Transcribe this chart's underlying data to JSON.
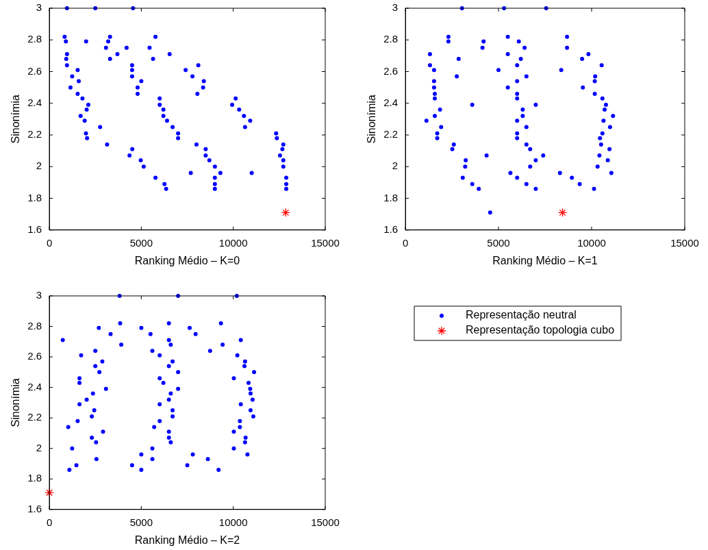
{
  "chart_data": [
    {
      "type": "scatter",
      "xlabel": "Ranking Médio – K=0",
      "ylabel": "Sinonímia",
      "xlim": [
        0,
        15000
      ],
      "xticks": [
        0,
        5000,
        10000,
        15000
      ],
      "ylim": [
        1.6,
        3
      ],
      "yticks": [
        1.6,
        1.8,
        2,
        2.2,
        2.4,
        2.6,
        2.8,
        3
      ],
      "grid": false,
      "series": [
        {
          "color": "#0000ff",
          "marker": "circle",
          "x": [
            960,
            2500,
            4550,
            830,
            3300,
            5770,
            900,
            2000,
            3200,
            3080,
            4200,
            5450,
            960,
            3700,
            6540,
            920,
            3300,
            5640,
            960,
            4500,
            8100,
            1540,
            4500,
            7410,
            1240,
            4500,
            7780,
            1600,
            5000,
            8400,
            1150,
            4800,
            8360,
            1540,
            4800,
            8050,
            1800,
            6000,
            10130,
            2120,
            6000,
            9940,
            2030,
            6200,
            10320,
            1700,
            6200,
            10580,
            1920,
            6400,
            10920,
            2760,
            6700,
            10640,
            1990,
            7000,
            12330,
            2050,
            7000,
            12370,
            3140,
            8000,
            12720,
            4510,
            8500,
            12670,
            4360,
            8500,
            12540,
            4970,
            8700,
            12720,
            5130,
            9000,
            12720,
            7690,
            9300,
            11000,
            5770,
            9000,
            12880,
            6260,
            9000,
            12880,
            6350,
            9000,
            12880
          ],
          "values": [
            3,
            3,
            3,
            2.82,
            2.82,
            2.82,
            2.79,
            2.79,
            2.79,
            2.75,
            2.75,
            2.75,
            2.71,
            2.71,
            2.71,
            2.68,
            2.68,
            2.68,
            2.64,
            2.64,
            2.64,
            2.61,
            2.61,
            2.61,
            2.57,
            2.57,
            2.57,
            2.54,
            2.54,
            2.54,
            2.5,
            2.5,
            2.5,
            2.46,
            2.46,
            2.46,
            2.43,
            2.43,
            2.43,
            2.39,
            2.39,
            2.39,
            2.36,
            2.36,
            2.36,
            2.32,
            2.32,
            2.32,
            2.29,
            2.29,
            2.29,
            2.25,
            2.25,
            2.25,
            2.21,
            2.21,
            2.21,
            2.18,
            2.18,
            2.18,
            2.14,
            2.14,
            2.14,
            2.11,
            2.11,
            2.11,
            2.07,
            2.07,
            2.07,
            2.04,
            2.04,
            2.04,
            2,
            2,
            2,
            1.96,
            1.96,
            1.96,
            1.93,
            1.93,
            1.93,
            1.89,
            1.89,
            1.89,
            1.86,
            1.86,
            1.86
          ]
        },
        {
          "color": "#ff0000",
          "marker": "cross",
          "x": [
            12850
          ],
          "values": [
            1.71
          ]
        }
      ]
    },
    {
      "type": "scatter",
      "xlabel": "Ranking Médio – K=1",
      "ylabel": "Sinonímia",
      "xlim": [
        0,
        15000
      ],
      "xticks": [
        0,
        5000,
        10000,
        15000
      ],
      "ylim": [
        1.6,
        3
      ],
      "yticks": [
        1.6,
        1.8,
        2,
        2.2,
        2.4,
        2.6,
        2.8,
        3
      ],
      "grid": false,
      "series": [
        {
          "color": "#0000ff",
          "marker": "circle",
          "x": [
            3040,
            5300,
            7560,
            2310,
            5500,
            8680,
            2310,
            4200,
            6090,
            4140,
            6400,
            8680,
            1320,
            5500,
            9830,
            2860,
            6200,
            9490,
            1320,
            6000,
            10540,
            1540,
            5000,
            8370,
            2760,
            6500,
            10190,
            1540,
            6000,
            10170,
            1540,
            5500,
            9530,
            1580,
            6000,
            10170,
            1580,
            6000,
            10580,
            3590,
            7000,
            10770,
            1860,
            6300,
            10700,
            1580,
            6300,
            11150,
            1130,
            6000,
            10640,
            1920,
            6500,
            10990,
            1710,
            6000,
            10580,
            1710,
            6000,
            10450,
            2600,
            6500,
            10510,
            2520,
            6700,
            10960,
            4360,
            7400,
            10420,
            3240,
            7000,
            10870,
            3210,
            6700,
            10320,
            5640,
            8300,
            11060,
            3080,
            6000,
            8940,
            3590,
            6500,
            9360,
            3940,
            7000,
            10130,
            4550
          ],
          "values": [
            3,
            3,
            3,
            2.82,
            2.82,
            2.82,
            2.79,
            2.79,
            2.79,
            2.75,
            2.75,
            2.75,
            2.71,
            2.71,
            2.71,
            2.68,
            2.68,
            2.68,
            2.64,
            2.64,
            2.64,
            2.61,
            2.61,
            2.61,
            2.57,
            2.57,
            2.57,
            2.54,
            2.54,
            2.54,
            2.5,
            2.5,
            2.5,
            2.46,
            2.46,
            2.46,
            2.43,
            2.43,
            2.43,
            2.39,
            2.39,
            2.39,
            2.36,
            2.36,
            2.36,
            2.32,
            2.32,
            2.32,
            2.29,
            2.29,
            2.29,
            2.25,
            2.25,
            2.25,
            2.21,
            2.21,
            2.21,
            2.18,
            2.18,
            2.18,
            2.14,
            2.14,
            2.14,
            2.11,
            2.11,
            2.11,
            2.07,
            2.07,
            2.07,
            2.04,
            2.04,
            2.04,
            2,
            2,
            2,
            1.96,
            1.96,
            1.96,
            1.93,
            1.93,
            1.93,
            1.89,
            1.89,
            1.89,
            1.86,
            1.86,
            1.86,
            1.71
          ]
        },
        {
          "color": "#ff0000",
          "marker": "cross",
          "x": [
            8440
          ],
          "values": [
            1.71
          ]
        }
      ]
    },
    {
      "type": "scatter",
      "xlabel": "Ranking Médio – K=2",
      "ylabel": "Sinonímia",
      "xlim": [
        0,
        15000
      ],
      "xticks": [
        0,
        5000,
        10000,
        15000
      ],
      "ylim": [
        1.6,
        3
      ],
      "yticks": [
        1.6,
        1.8,
        2,
        2.2,
        2.4,
        2.6,
        2.8,
        3
      ],
      "grid": false,
      "legend": "right",
      "series": [
        {
          "name": "Representação neutral",
          "color": "#0000ff",
          "marker": "circle",
          "x": [
            3820,
            7000,
            10190,
            3850,
            6500,
            9330,
            2690,
            5000,
            7630,
            3330,
            5500,
            7950,
            730,
            6500,
            10410,
            3910,
            6600,
            9420,
            2500,
            5600,
            8740,
            1730,
            6000,
            10220,
            2880,
            6700,
            10640,
            2500,
            6500,
            10610,
            2720,
            7000,
            11130,
            1640,
            6000,
            10030,
            1640,
            6200,
            10830,
            3080,
            7000,
            10920,
            2370,
            6600,
            10940,
            2030,
            6500,
            11050,
            1640,
            6000,
            10410,
            2440,
            6700,
            10940,
            2310,
            6700,
            11090,
            1540,
            6000,
            10360,
            1030,
            5700,
            10360,
            2920,
            6500,
            10030,
            2310,
            6500,
            10670,
            2540,
            6600,
            10640,
            1240,
            5600,
            10030,
            5000,
            7800,
            10770,
            2560,
            5600,
            8620,
            1470,
            4500,
            7500,
            1090,
            5000,
            9200
          ],
          "values": [
            3,
            3,
            3,
            2.82,
            2.82,
            2.82,
            2.79,
            2.79,
            2.79,
            2.75,
            2.75,
            2.75,
            2.71,
            2.71,
            2.71,
            2.68,
            2.68,
            2.68,
            2.64,
            2.64,
            2.64,
            2.61,
            2.61,
            2.61,
            2.57,
            2.57,
            2.57,
            2.54,
            2.54,
            2.54,
            2.5,
            2.5,
            2.5,
            2.46,
            2.46,
            2.46,
            2.43,
            2.43,
            2.43,
            2.39,
            2.39,
            2.39,
            2.36,
            2.36,
            2.36,
            2.32,
            2.32,
            2.32,
            2.29,
            2.29,
            2.29,
            2.25,
            2.25,
            2.25,
            2.21,
            2.21,
            2.21,
            2.18,
            2.18,
            2.18,
            2.14,
            2.14,
            2.14,
            2.11,
            2.11,
            2.11,
            2.07,
            2.07,
            2.07,
            2.04,
            2.04,
            2.04,
            2,
            2,
            2,
            1.96,
            1.96,
            1.96,
            1.93,
            1.93,
            1.93,
            1.89,
            1.89,
            1.89,
            1.86,
            1.86,
            1.86
          ]
        },
        {
          "name": "Representação topologia cubo",
          "color": "#ff0000",
          "marker": "cross",
          "x": [
            0
          ],
          "values": [
            1.71
          ]
        }
      ]
    }
  ]
}
